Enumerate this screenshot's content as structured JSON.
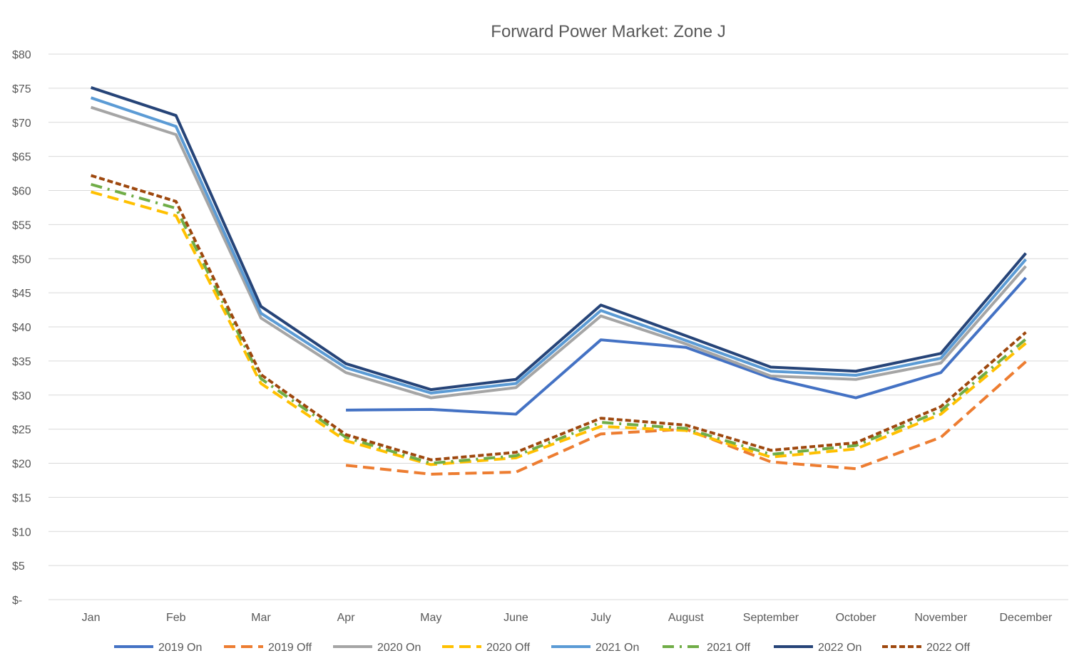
{
  "chart_data": {
    "type": "line",
    "title": "Forward Power Market: Zone J",
    "xlabel": "",
    "ylabel": "",
    "ylim": [
      0,
      80
    ],
    "yticks": [
      0,
      5,
      10,
      15,
      20,
      25,
      30,
      35,
      40,
      45,
      50,
      55,
      60,
      65,
      70,
      75,
      80
    ],
    "ytick_labels": [
      "$-",
      "$5",
      "$10",
      "$15",
      "$20",
      "$25",
      "$30",
      "$35",
      "$40",
      "$45",
      "$50",
      "$55",
      "$60",
      "$65",
      "$70",
      "$75",
      "$80"
    ],
    "grid": true,
    "legend_position": "bottom",
    "categories": [
      "Jan",
      "Feb",
      "Mar",
      "Apr",
      "May",
      "June",
      "July",
      "August",
      "September",
      "October",
      "November",
      "December"
    ],
    "series": [
      {
        "name": "2019 On",
        "color": "#4472C4",
        "style": "solid",
        "values": [
          null,
          null,
          null,
          27.8,
          27.9,
          27.2,
          38.1,
          37.0,
          32.5,
          29.6,
          33.3,
          47.2
        ]
      },
      {
        "name": "2019 Off",
        "color": "#ED7D31",
        "style": "dash",
        "values": [
          null,
          null,
          null,
          19.7,
          18.4,
          18.7,
          24.3,
          25.0,
          20.2,
          19.2,
          23.8,
          34.9
        ]
      },
      {
        "name": "2020 On",
        "color": "#A5A5A5",
        "style": "solid",
        "values": [
          72.2,
          68.2,
          41.3,
          33.3,
          29.6,
          31.1,
          41.6,
          37.5,
          32.8,
          32.3,
          34.7,
          48.9
        ]
      },
      {
        "name": "2020 Off",
        "color": "#FFC000",
        "style": "dash",
        "values": [
          59.8,
          56.3,
          31.7,
          23.3,
          19.8,
          20.8,
          25.4,
          24.8,
          20.9,
          22.1,
          27.2,
          37.6
        ]
      },
      {
        "name": "2021 On",
        "color": "#5B9BD5",
        "style": "solid",
        "values": [
          73.6,
          69.4,
          42.0,
          34.0,
          30.3,
          31.7,
          42.4,
          38.0,
          33.5,
          32.9,
          35.4,
          49.9
        ]
      },
      {
        "name": "2021 Off",
        "color": "#70AD47",
        "style": "dashdot",
        "values": [
          60.9,
          57.4,
          32.4,
          23.8,
          20.0,
          21.1,
          26.0,
          25.1,
          21.3,
          22.6,
          27.7,
          38.2
        ]
      },
      {
        "name": "2022 On",
        "color": "#264478",
        "style": "solid",
        "values": [
          75.1,
          71.0,
          43.0,
          34.6,
          30.8,
          32.3,
          43.2,
          38.7,
          34.1,
          33.5,
          36.1,
          50.8
        ]
      },
      {
        "name": "2022 Off",
        "color": "#9E480E",
        "style": "dot",
        "values": [
          62.2,
          58.4,
          33.0,
          24.2,
          20.5,
          21.6,
          26.6,
          25.6,
          21.9,
          23.0,
          28.3,
          39.2
        ]
      }
    ]
  }
}
